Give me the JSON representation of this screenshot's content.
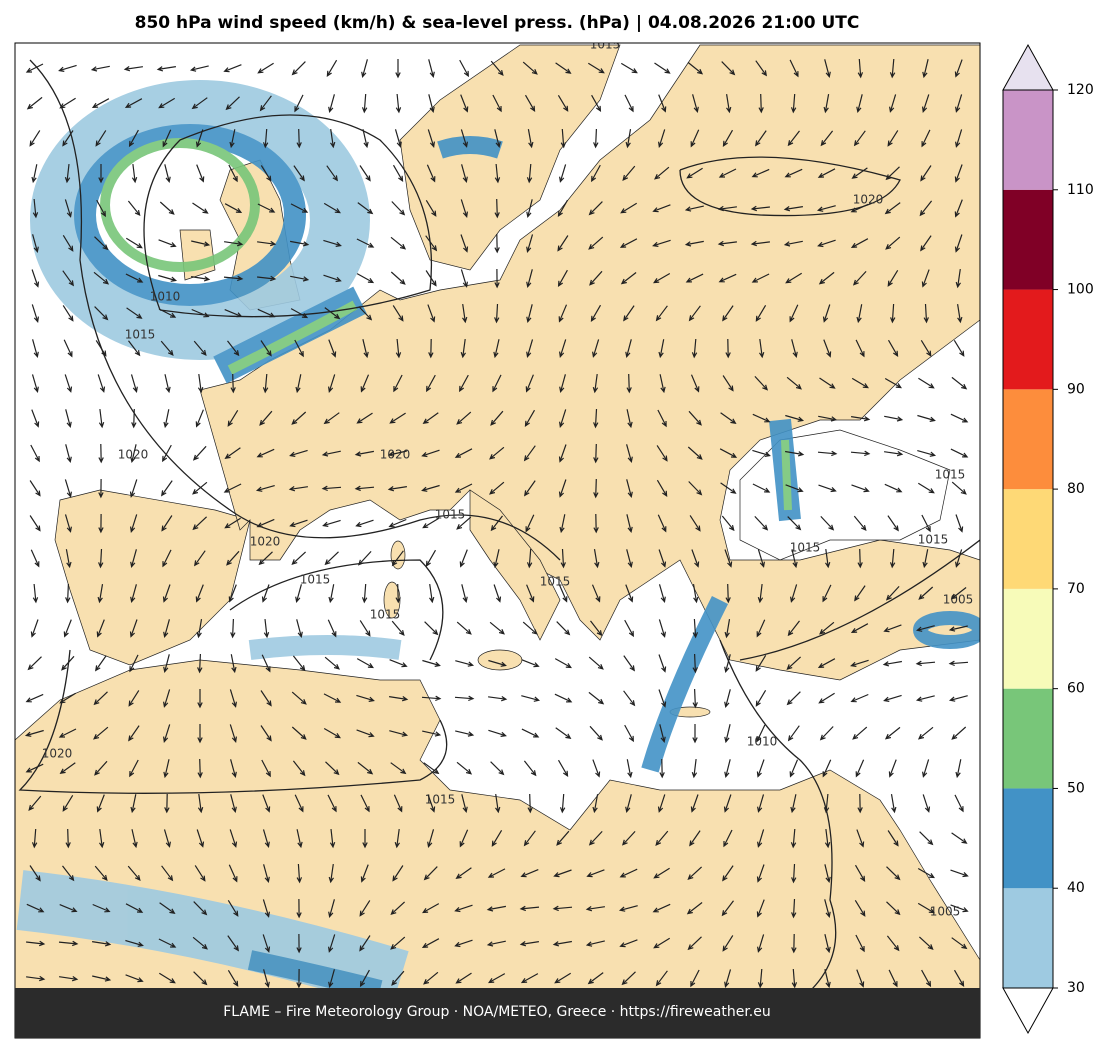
{
  "title": "850 hPa wind speed (km/h) & sea-level press. (hPa)  |  04.08.2026 21:00 UTC",
  "colorbar": {
    "ticks": [
      30,
      40,
      50,
      60,
      70,
      80,
      90,
      100,
      110,
      120
    ],
    "colors": [
      "#9ecae1",
      "#4292c6",
      "#78c679",
      "#f7fbb9",
      "#fed976",
      "#fd8d3c",
      "#e31a1c",
      "#800026",
      "#c994c7"
    ],
    "under_color": "#ffffff",
    "over_color": "#e7e1ef"
  },
  "isobar_labels": [
    "1015",
    "1010",
    "1015",
    "1020",
    "1020",
    "1020",
    "1015",
    "1020",
    "1015",
    "1015",
    "1015",
    "1015",
    "1015",
    "1005",
    "1015",
    "1010",
    "1020",
    "1015",
    "1005"
  ],
  "footer": "FLAME – Fire Meteorology Group · NOA/METEO, Greece · https://fireweather.eu"
}
